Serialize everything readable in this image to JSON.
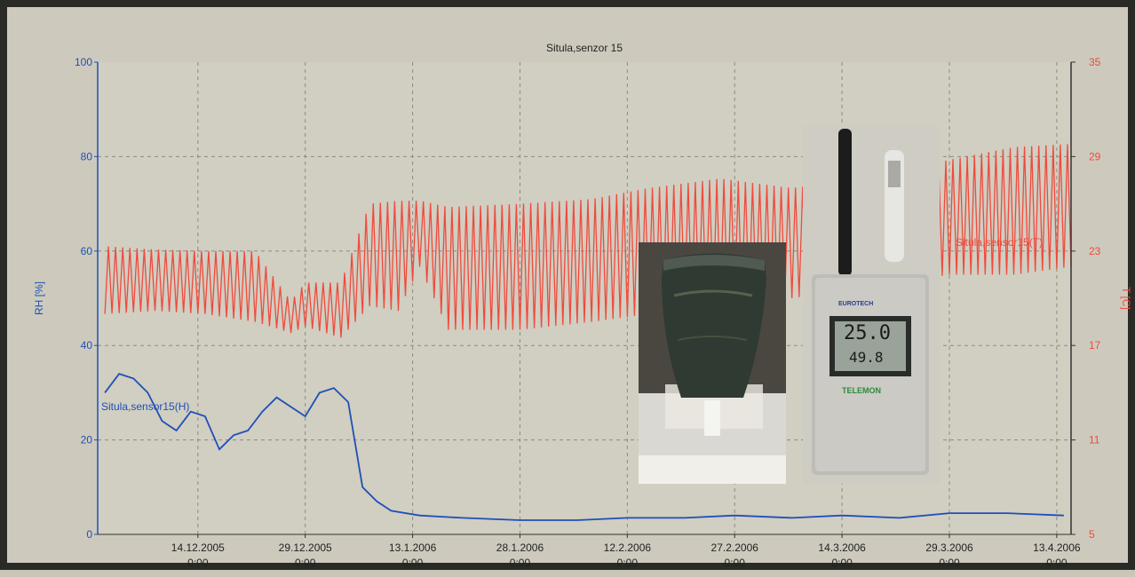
{
  "chart_data": {
    "type": "line",
    "title": "Situla,senzor 15",
    "ylabel": "RH [%]",
    "y2label": "T [C]",
    "ylim": [
      0,
      100
    ],
    "y2lim": [
      5,
      35
    ],
    "yticks": [
      "100",
      "80",
      "60",
      "40",
      "20",
      "0"
    ],
    "y2ticks": [
      "35",
      "29",
      "23",
      "17",
      "11",
      "5"
    ],
    "xlim": [
      "2005-11-30",
      "2006-04-15"
    ],
    "xticks": [
      {
        "date": "14.12.2005",
        "time": "0:00"
      },
      {
        "date": "29.12.2005",
        "time": "0:00"
      },
      {
        "date": "13.1.2006",
        "time": "0:00"
      },
      {
        "date": "28.1.2006",
        "time": "0:00"
      },
      {
        "date": "12.2.2006",
        "time": "0:00"
      },
      {
        "date": "27.2.2006",
        "time": "0:00"
      },
      {
        "date": "14.3.2006",
        "time": "0:00"
      },
      {
        "date": "29.3.2006",
        "time": "0:00"
      },
      {
        "date": "13.4.2006",
        "time": "0:00"
      }
    ],
    "grid": true,
    "series": [
      {
        "name": "Situla,sensor15(H)",
        "axis": "left",
        "color": "#1f4fb8",
        "x": [
          "2005-12-01",
          "2005-12-03",
          "2005-12-05",
          "2005-12-07",
          "2005-12-09",
          "2005-12-11",
          "2005-12-13",
          "2005-12-15",
          "2005-12-17",
          "2005-12-19",
          "2005-12-21",
          "2005-12-23",
          "2005-12-25",
          "2005-12-27",
          "2005-12-29",
          "2005-12-31",
          "2006-01-02",
          "2006-01-04",
          "2006-01-06",
          "2006-01-08",
          "2006-01-10",
          "2006-01-14",
          "2006-01-20",
          "2006-01-28",
          "2006-02-05",
          "2006-02-12",
          "2006-02-20",
          "2006-02-27",
          "2006-03-07",
          "2006-03-14",
          "2006-03-22",
          "2006-03-29",
          "2006-04-06",
          "2006-04-14"
        ],
        "values": [
          30,
          34,
          33,
          30,
          24,
          22,
          26,
          25,
          18,
          21,
          22,
          26,
          29,
          27,
          25,
          30,
          31,
          28,
          10,
          7,
          5,
          4,
          3.5,
          3,
          3,
          3.5,
          3.5,
          4,
          3.5,
          4,
          3.5,
          4.5,
          4.5,
          4
        ]
      },
      {
        "name": "Situla,sensor15(T)",
        "axis": "right",
        "color": "#ef4a3c",
        "x": [
          "2005-12-01",
          "2005-12-08",
          "2005-12-15",
          "2005-12-22",
          "2005-12-27",
          "2005-12-29",
          "2006-01-03",
          "2006-01-07",
          "2006-01-11",
          "2006-01-14",
          "2006-01-18",
          "2006-01-28",
          "2006-02-07",
          "2006-02-15",
          "2006-02-25",
          "2006-03-07",
          "2006-03-15",
          "2006-03-22",
          "2006-03-29",
          "2006-04-07",
          "2006-04-15"
        ],
        "min": [
          19.0,
          19.2,
          19.0,
          18.5,
          17.8,
          18.2,
          17.5,
          19.5,
          19.2,
          22.0,
          18.0,
          18.0,
          18.5,
          19.0,
          19.5,
          20.0,
          20.5,
          21.0,
          21.5,
          21.5,
          22.0
        ],
        "max": [
          23.3,
          23.1,
          23.0,
          23.0,
          19.8,
          21.0,
          21.0,
          26.0,
          26.2,
          26.2,
          25.8,
          26.0,
          26.3,
          27.0,
          27.6,
          27.0,
          27.5,
          28.0,
          28.8,
          29.6,
          29.8
        ]
      }
    ]
  },
  "photos": {
    "situla_photo_icon": "bronze-situla-vessel",
    "sensor_photo_icon": "wireless-humidity-temperature-sensor",
    "sensor_brand": "EUROTECH",
    "sensor_display_top": "25.0",
    "sensor_display_bottom": "49.8",
    "sensor_model": "TELEMON"
  }
}
